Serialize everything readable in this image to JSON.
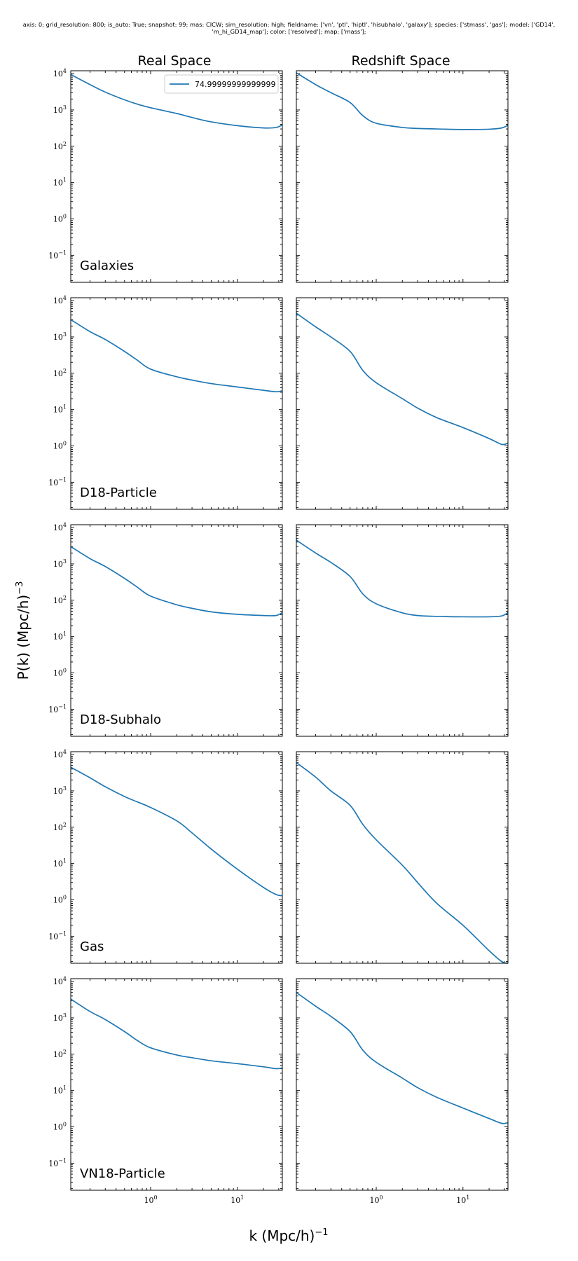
{
  "header": {
    "line1": "axis: 0; grid_resolution: 800; is_auto: True; snapshot: 99; mas: CICW; sim_resolution: high; fieldname: ['vn', 'ptl', 'hiptl', 'hisubhalo', 'galaxy']; species: ['stmass', 'gas']; model: ['GD14',",
    "line2": "'m_hi_GD14_map']; color: ['resolved']; map: ['mass'];"
  },
  "columns": [
    "Real Space",
    "Redshift Space"
  ],
  "xlabel": "k (Mpc/h)",
  "xlabel_exp": "−1",
  "ylabel": "P(k) (Mpc/h)",
  "ylabel_exp": "−3",
  "colors": {
    "line": "#1f77b4",
    "axes": "#000000"
  },
  "chart_data": {
    "type": "line",
    "scale": "log-log",
    "xlim": [
      0.12,
      33
    ],
    "ylim": [
      0.018,
      12000
    ],
    "x_ticks": [
      {
        "value": 1,
        "base": "10",
        "exp": "0"
      },
      {
        "value": 10,
        "base": "10",
        "exp": "1"
      }
    ],
    "y_ticks": [
      {
        "value": 0.1,
        "base": "10",
        "exp": "−1"
      },
      {
        "value": 1,
        "base": "10",
        "exp": "0"
      },
      {
        "value": 10,
        "base": "10",
        "exp": "1"
      },
      {
        "value": 100,
        "base": "10",
        "exp": "2"
      },
      {
        "value": 1000,
        "base": "10",
        "exp": "3"
      },
      {
        "value": 10000,
        "base": "10",
        "exp": "4"
      }
    ],
    "legend": {
      "label": "74.99999999999999",
      "location": "top-right"
    },
    "rows": [
      {
        "label": "Galaxies",
        "panels": [
          {
            "column": "Real Space",
            "x": [
              0.12,
              0.2,
              0.3,
              0.5,
              0.7,
              1,
              2,
              3,
              5,
              10,
              20,
              28,
              33
            ],
            "y": [
              9500,
              5000,
              3100,
              1900,
              1450,
              1150,
              800,
              620,
              470,
              370,
              320,
              330,
              390
            ]
          },
          {
            "column": "Redshift Space",
            "x": [
              0.12,
              0.2,
              0.3,
              0.5,
              0.7,
              1,
              2,
              3,
              5,
              10,
              20,
              28,
              33
            ],
            "y": [
              10500,
              5000,
              3000,
              1600,
              700,
              430,
              330,
              310,
              300,
              290,
              295,
              320,
              380
            ]
          }
        ]
      },
      {
        "label": "D18-Particle",
        "panels": [
          {
            "column": "Real Space",
            "x": [
              0.12,
              0.2,
              0.3,
              0.5,
              0.7,
              1,
              2,
              3,
              5,
              10,
              20,
              28,
              33
            ],
            "y": [
              3000,
              1400,
              850,
              400,
              230,
              130,
              80,
              65,
              52,
              42,
              34,
              31,
              33
            ]
          },
          {
            "column": "Redshift Space",
            "x": [
              0.12,
              0.2,
              0.3,
              0.5,
              0.7,
              1,
              2,
              3,
              5,
              10,
              20,
              28,
              33
            ],
            "y": [
              4500,
              1900,
              1000,
              400,
              120,
              55,
              20,
              11,
              6,
              3.2,
              1.6,
              1.1,
              1.2
            ]
          }
        ]
      },
      {
        "label": "D18-Subhalo",
        "panels": [
          {
            "column": "Real Space",
            "x": [
              0.12,
              0.2,
              0.3,
              0.5,
              0.7,
              1,
              2,
              3,
              5,
              10,
              20,
              28,
              33
            ],
            "y": [
              3000,
              1400,
              850,
              400,
              230,
              130,
              75,
              60,
              48,
              41,
              38,
              38,
              46
            ]
          },
          {
            "column": "Redshift Space",
            "x": [
              0.12,
              0.2,
              0.3,
              0.5,
              0.7,
              1,
              2,
              3,
              5,
              10,
              20,
              28,
              33
            ],
            "y": [
              4500,
              2000,
              1100,
              450,
              150,
              80,
              45,
              38,
              36,
              35,
              35,
              37,
              46
            ]
          }
        ]
      },
      {
        "label": "Gas",
        "panels": [
          {
            "column": "Real Space",
            "x": [
              0.12,
              0.2,
              0.3,
              0.5,
              0.7,
              1,
              2,
              3,
              5,
              10,
              20,
              28,
              33
            ],
            "y": [
              4500,
              2300,
              1300,
              700,
              500,
              350,
              150,
              70,
              25,
              7,
              2.2,
              1.4,
              1.3
            ]
          },
          {
            "column": "Redshift Space",
            "x": [
              0.12,
              0.2,
              0.3,
              0.5,
              0.7,
              1,
              2,
              3,
              5,
              10,
              20,
              28,
              33
            ],
            "y": [
              6000,
              2400,
              1000,
              400,
              120,
              45,
              9,
              3,
              0.8,
              0.2,
              0.04,
              0.02,
              0.018
            ]
          }
        ]
      },
      {
        "label": "VN18-Particle",
        "panels": [
          {
            "column": "Real Space",
            "x": [
              0.12,
              0.2,
              0.3,
              0.5,
              0.7,
              1,
              2,
              3,
              5,
              10,
              20,
              28,
              33
            ],
            "y": [
              3300,
              1500,
              900,
              420,
              240,
              150,
              95,
              80,
              66,
              55,
              45,
              40,
              42
            ]
          },
          {
            "column": "Redshift Space",
            "x": [
              0.12,
              0.2,
              0.3,
              0.5,
              0.7,
              1,
              2,
              3,
              5,
              10,
              20,
              28,
              33
            ],
            "y": [
              5000,
              2100,
              1100,
              420,
              130,
              60,
              22,
              12,
              6.5,
              3.3,
              1.7,
              1.25,
              1.3
            ]
          }
        ]
      }
    ]
  }
}
